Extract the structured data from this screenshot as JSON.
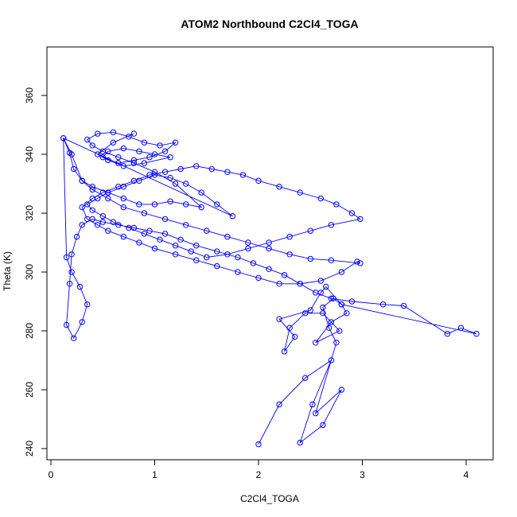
{
  "chart_data": {
    "type": "line",
    "title": "ATOM2 Northbound C2Cl4_TOGA",
    "xlabel": "C2Cl4_TOGA",
    "ylabel": "Theta (K)",
    "xlim": [
      0,
      4.25
    ],
    "ylim": [
      237,
      377
    ],
    "xticks": [
      0,
      1,
      2,
      3,
      4
    ],
    "yticks": [
      240,
      260,
      280,
      300,
      320,
      340,
      360
    ],
    "xtick_labels": [
      "0",
      "1",
      "2",
      "3",
      "4"
    ],
    "ytick_labels": [
      "240",
      "260",
      "280",
      "300",
      "320",
      "340",
      "360"
    ],
    "grid": false,
    "series_color": "#0000ff",
    "marker": "open-circle",
    "series": [
      {
        "x": [
          2.0,
          2.2,
          2.45,
          2.7,
          2.52,
          2.4,
          2.62,
          2.8,
          2.55,
          2.75,
          2.68,
          2.62,
          2.72,
          2.8,
          2.85,
          2.7,
          2.55,
          2.78,
          2.62,
          2.45,
          2.3,
          2.25,
          2.35,
          2.2,
          2.5,
          2.6,
          2.65,
          2.8,
          4.1,
          3.95,
          3.82,
          3.4,
          3.2,
          2.9,
          2.7,
          2.55,
          2.4,
          2.25,
          2.1,
          1.95,
          1.8,
          1.6,
          1.4,
          1.25,
          1.1,
          0.95,
          0.8,
          0.65,
          0.5,
          0.4,
          0.3,
          0.25,
          0.2,
          0.18,
          0.15,
          0.22,
          0.3,
          0.35,
          0.28,
          0.2,
          0.15,
          0.12,
          0.2,
          0.3,
          0.4,
          0.55,
          0.7,
          0.9,
          1.1,
          1.3,
          1.5,
          1.7,
          1.9,
          2.1,
          2.3,
          2.5,
          2.7,
          2.98,
          2.95,
          2.8,
          2.6,
          2.4,
          2.2,
          2.0,
          1.8,
          1.6,
          1.4,
          1.2,
          1.0,
          0.85,
          0.7,
          0.55,
          0.45,
          0.35,
          0.3,
          0.4,
          0.5,
          0.65,
          0.8,
          0.95,
          1.1,
          1.25,
          1.4,
          1.55,
          1.7,
          1.85,
          2.0,
          2.2,
          2.4,
          2.6,
          2.75,
          2.9,
          2.98,
          2.7,
          2.5,
          2.3,
          2.1,
          1.9,
          1.7,
          1.5,
          1.35,
          1.2,
          1.05,
          0.9,
          0.75,
          0.6,
          0.5,
          0.4,
          0.35,
          0.45,
          0.55,
          0.7,
          0.85,
          1.0,
          1.15,
          1.3,
          1.45,
          1.6,
          1.75,
          0.12,
          0.18,
          0.22,
          0.3,
          0.4,
          0.55,
          0.7,
          0.85,
          1.0,
          1.15,
          1.3,
          1.45,
          1.2,
          1.0,
          0.8,
          0.65,
          0.5,
          0.4,
          0.35,
          0.45,
          0.6,
          0.75,
          0.9,
          1.05,
          1.2,
          1.1,
          0.95,
          0.8,
          0.65,
          0.5,
          0.55,
          0.7,
          0.85,
          1.0,
          1.15,
          0.9,
          0.7,
          0.55,
          0.45,
          0.6,
          0.8
        ],
        "y": [
          241.5,
          255,
          264,
          270,
          255,
          242,
          248,
          260,
          252,
          276,
          281,
          288,
          291,
          289,
          286,
          283,
          276,
          280,
          286,
          286,
          281,
          273,
          278,
          284,
          287,
          293,
          295,
          289,
          279,
          281,
          279,
          288.5,
          289,
          290,
          291,
          293,
          296,
          299,
          301,
          303,
          305,
          307,
          309,
          311,
          313,
          314,
          315,
          316,
          317,
          318,
          316,
          312,
          306,
          296,
          282,
          277.5,
          283,
          289,
          295,
          300,
          305,
          345.5,
          340,
          331,
          328,
          325,
          322,
          320,
          318,
          316,
          314,
          312,
          310,
          308,
          306,
          304.5,
          304,
          303,
          303.5,
          300,
          297,
          296,
          296,
          298,
          300,
          302,
          304,
          306,
          308,
          310,
          312,
          314,
          316,
          318,
          322,
          325,
          327,
          329,
          331,
          333,
          334,
          335,
          336,
          335,
          334,
          333,
          331,
          329,
          327,
          325,
          323,
          320,
          318,
          316,
          314,
          312,
          310,
          308,
          306,
          305,
          307,
          309,
          311,
          313,
          315,
          317,
          319,
          321,
          323,
          325,
          327,
          329,
          331,
          333,
          332,
          330,
          327,
          323,
          319,
          345.5,
          340.5,
          335,
          331,
          329,
          327,
          325,
          323,
          323,
          324,
          323,
          322,
          330,
          334,
          337,
          339,
          341,
          343,
          345,
          347,
          347.5,
          346,
          344,
          343,
          344,
          341,
          339,
          338,
          337,
          339,
          341,
          342,
          341,
          340,
          339,
          337,
          336,
          338,
          340,
          344,
          347
        ]
      }
    ]
  }
}
